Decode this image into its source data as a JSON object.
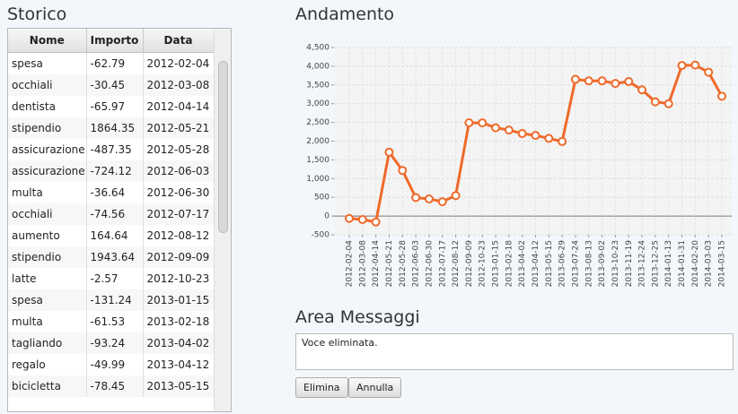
{
  "storico": {
    "title": "Storico",
    "columns": [
      "Nome",
      "Importo",
      "Data"
    ],
    "rows": [
      [
        "spesa",
        "-62.79",
        "2012-02-04"
      ],
      [
        "occhiali",
        "-30.45",
        "2012-03-08"
      ],
      [
        "dentista",
        "-65.97",
        "2012-04-14"
      ],
      [
        "stipendio",
        "1864.35",
        "2012-05-21"
      ],
      [
        "assicurazione",
        "-487.35",
        "2012-05-28"
      ],
      [
        "assicurazione",
        "-724.12",
        "2012-06-03"
      ],
      [
        "multa",
        "-36.64",
        "2012-06-30"
      ],
      [
        "occhiali",
        "-74.56",
        "2012-07-17"
      ],
      [
        "aumento",
        "164.64",
        "2012-08-12"
      ],
      [
        "stipendio",
        "1943.64",
        "2012-09-09"
      ],
      [
        "latte",
        "-2.57",
        "2012-10-23"
      ],
      [
        "spesa",
        "-131.24",
        "2013-01-15"
      ],
      [
        "multa",
        "-61.53",
        "2013-02-18"
      ],
      [
        "tagliando",
        "-93.24",
        "2013-04-02"
      ],
      [
        "regalo",
        "-49.99",
        "2013-04-12"
      ],
      [
        "bicicletta",
        "-78.45",
        "2013-05-15"
      ]
    ]
  },
  "chart_data": {
    "type": "line",
    "title": "Andamento",
    "color": "#ef6a2b",
    "grid": true,
    "categories": [
      "2012-02-04",
      "2012-03-08",
      "2012-04-14",
      "2012-05-21",
      "2012-05-28",
      "2012-06-03",
      "2012-06-30",
      "2012-07-17",
      "2012-08-12",
      "2012-09-09",
      "2012-10-23",
      "2013-01-15",
      "2013-02-18",
      "2013-04-02",
      "2013-04-12",
      "2013-05-15",
      "2013-06-29",
      "2013-07-24",
      "2013-08-13",
      "2013-09-02",
      "2013-10-23",
      "2013-11-19",
      "2013-12-24",
      "2013-12-25",
      "2014-01-13",
      "2014-01-31",
      "2014-02-20",
      "2014-03-03",
      "2014-03-15"
    ],
    "values": [
      -62.79,
      -93.24,
      -159.21,
      1705.14,
      1217.79,
      493.67,
      457.03,
      382.47,
      547.11,
      2490.75,
      2488.18,
      2356.94,
      2295.41,
      2202.17,
      2152.18,
      2073.73,
      1990,
      3650,
      3610,
      3610,
      3540,
      3590,
      3370,
      3050,
      3000,
      4020,
      4030,
      3840,
      3200
    ],
    "ylim": [
      -500,
      4500
    ],
    "yticks": [
      -500,
      0,
      500,
      {
        "value": 1000,
        "label": "1,000"
      },
      {
        "value": 1500,
        "label": "1,500"
      },
      {
        "value": 2000,
        "label": "2,000"
      },
      {
        "value": 2500,
        "label": "2,500"
      },
      {
        "value": 3000,
        "label": "3,000"
      },
      {
        "value": 3500,
        "label": "3,500"
      },
      {
        "value": 4000,
        "label": "4,000"
      },
      {
        "value": 4500,
        "label": "4,500"
      }
    ]
  },
  "messages": {
    "title": "Area Messaggi",
    "text": "Voce eliminata."
  },
  "buttons": [
    "Elimina",
    "Annulla"
  ]
}
